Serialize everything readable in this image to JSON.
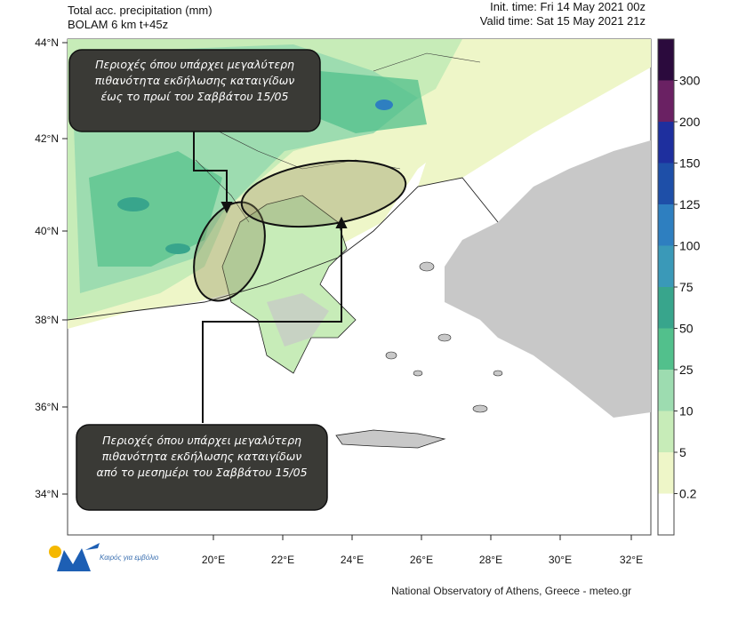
{
  "header": {
    "title": "Total acc. precipitation (mm)",
    "model": "BOLAM 6 km t+45z",
    "init_time": "Init. time: Fri 14 May 2021 00z",
    "valid_time": "Valid time: Sat 15 May 2021 21z"
  },
  "lat_labels": [
    "44°N",
    "42°N",
    "40°N",
    "38°N",
    "36°N",
    "34°N"
  ],
  "lon_labels": [
    "20°E",
    "22°E",
    "24°E",
    "26°E",
    "28°E",
    "30°E",
    "32°E"
  ],
  "colorbar": {
    "labels": [
      "300",
      "200",
      "150",
      "125",
      "100",
      "75",
      "50",
      "25",
      "10",
      "5",
      "0.2"
    ],
    "colors": [
      "#2b0a3d",
      "#6a2163",
      "#1e2f9e",
      "#1e4fa8",
      "#2e7fc0",
      "#3a99b8",
      "#38a58c",
      "#52c08c",
      "#9ddcb0",
      "#c7ecb8",
      "#eef6c8",
      "#ffffff"
    ]
  },
  "callouts": {
    "top": "Περιοχές όπου υπάρχει μεγαλύτερη πιθανότητα εκδήλωσης καταιγίδων  έως το πρωί του Σαββάτου 15/05",
    "bottom": "Περιοχές όπου υπάρχει μεγαλύτερη πιθανότητα εκδήλωσης καταιγίδων από το μεσημέρι του Σαββάτου 15/05"
  },
  "logo_text": "Καιρός για εμβόλιο",
  "footer": "National Observatory of Athens, Greece - meteo.gr"
}
